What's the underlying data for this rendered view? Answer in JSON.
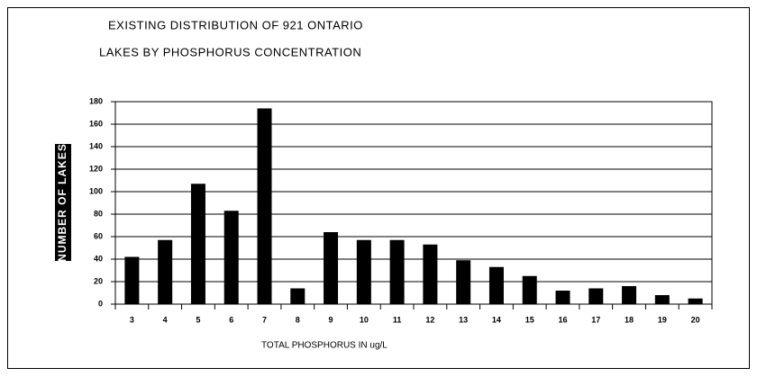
{
  "chart_data": {
    "type": "bar",
    "title": [
      "EXISTING DISTRIBUTION OF 921 ONTARIO",
      "LAKES BY PHOSPHORUS CONCENTRATION"
    ],
    "y_label": "NUMBER OF LAKES",
    "x_label": "TOTAL PHOSPHORUS IN ug/L",
    "categories": [
      "3",
      "4",
      "5",
      "6",
      "7",
      "8",
      "9",
      "10",
      "11",
      "12",
      "13",
      "14",
      "15",
      "16",
      "17",
      "18",
      "19",
      "20"
    ],
    "values": [
      42,
      57,
      107,
      83,
      174,
      14,
      64,
      57,
      57,
      53,
      39,
      33,
      25,
      12,
      14,
      16,
      8,
      5
    ],
    "color": "#000000",
    "ylim": [
      0,
      180
    ],
    "yticks": [
      0,
      20,
      40,
      60,
      80,
      100,
      120,
      140,
      160,
      180
    ],
    "grid": true
  }
}
